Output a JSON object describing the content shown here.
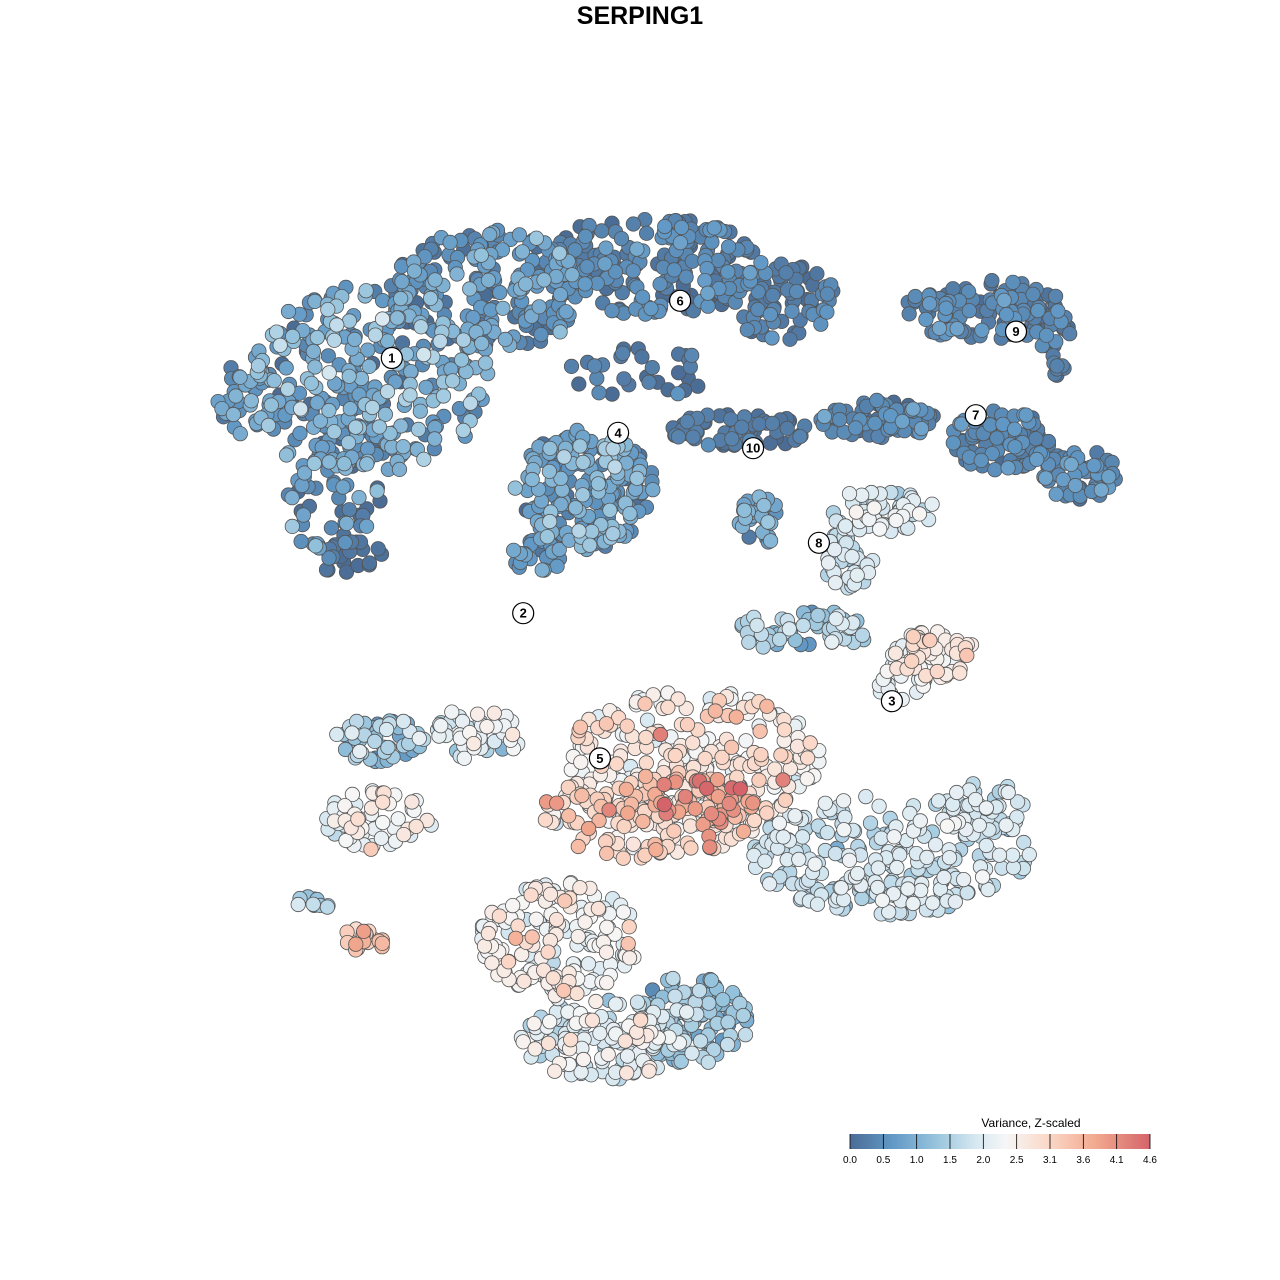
{
  "title": "SERPING1",
  "chart_data": {
    "type": "scatter",
    "title": "SERPING1",
    "xlabel": "",
    "ylabel": "",
    "grid": false,
    "legend": {
      "title": "Variance, Z-scaled",
      "placement": "bottom-right",
      "ticks": [
        "0.0",
        "0.5",
        "1.0",
        "1.5",
        "2.0",
        "2.5",
        "3.1",
        "3.6",
        "4.1",
        "4.6"
      ],
      "range": [
        0.0,
        4.6
      ],
      "colors": [
        "#4a6c95",
        "#6198c5",
        "#94c2dc",
        "#d7e8f1",
        "#f6f6f6",
        "#fbd8c8",
        "#f2a98f",
        "#d4646a"
      ]
    },
    "clusters": [
      {
        "label": "1",
        "x": -6.8,
        "y": 7.0,
        "mean_value": 0.8
      },
      {
        "label": "2",
        "x": -3.2,
        "y": -4.6,
        "mean_value": 2.4
      },
      {
        "label": "3",
        "x": 6.9,
        "y": -8.6,
        "mean_value": 1.9
      },
      {
        "label": "4",
        "x": -0.6,
        "y": 3.6,
        "mean_value": 0.7
      },
      {
        "label": "5",
        "x": -1.1,
        "y": -11.2,
        "mean_value": 2.2
      },
      {
        "label": "6",
        "x": 1.1,
        "y": 9.6,
        "mean_value": 0.3
      },
      {
        "label": "7",
        "x": 9.2,
        "y": 4.4,
        "mean_value": 0.3
      },
      {
        "label": "8",
        "x": 4.9,
        "y": -1.4,
        "mean_value": 2.3
      },
      {
        "label": "9",
        "x": 10.3,
        "y": 8.2,
        "mean_value": 0.3
      },
      {
        "label": "10",
        "x": 3.1,
        "y": 2.9,
        "mean_value": 0.9
      }
    ]
  }
}
